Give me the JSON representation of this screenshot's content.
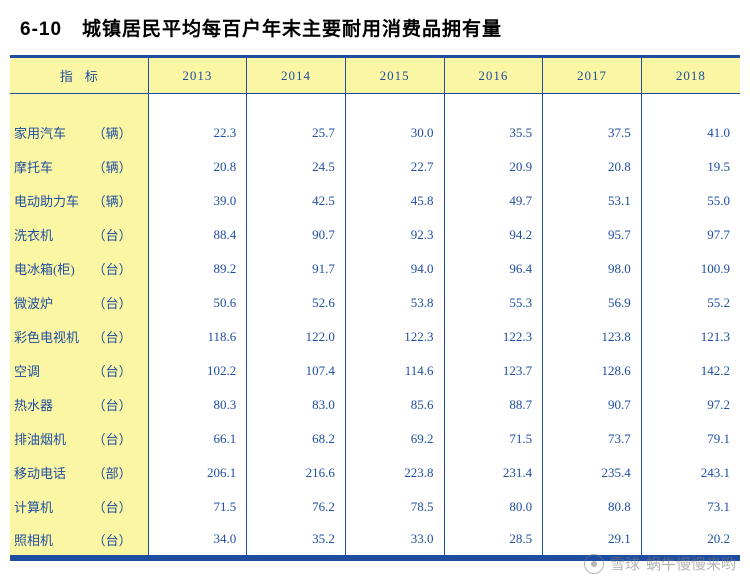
{
  "title": "6-10　城镇居民平均每百户年末主要耐用消费品拥有量",
  "header": {
    "indicator_label": "指标",
    "years": [
      "2013",
      "2014",
      "2015",
      "2016",
      "2017",
      "2018"
    ]
  },
  "colors": {
    "header_bg": "#fbf6a4",
    "label_bg": "#fbf6a4",
    "border": "#1f4ea1",
    "text": "#1f4ea1",
    "title_text": "#000000",
    "page_bg": "#ffffff"
  },
  "rows": [
    {
      "name": "家用汽车",
      "unit": "（辆）",
      "values": [
        "22.3",
        "25.7",
        "30.0",
        "35.5",
        "37.5",
        "41.0"
      ]
    },
    {
      "name": "摩托车",
      "unit": "（辆）",
      "values": [
        "20.8",
        "24.5",
        "22.7",
        "20.9",
        "20.8",
        "19.5"
      ]
    },
    {
      "name": "电动助力车",
      "unit": "（辆）",
      "values": [
        "39.0",
        "42.5",
        "45.8",
        "49.7",
        "53.1",
        "55.0"
      ]
    },
    {
      "name": "洗衣机",
      "unit": "（台）",
      "values": [
        "88.4",
        "90.7",
        "92.3",
        "94.2",
        "95.7",
        "97.7"
      ]
    },
    {
      "name": "电冰箱(柜)",
      "unit": "（台）",
      "values": [
        "89.2",
        "91.7",
        "94.0",
        "96.4",
        "98.0",
        "100.9"
      ]
    },
    {
      "name": "微波炉",
      "unit": "（台）",
      "values": [
        "50.6",
        "52.6",
        "53.8",
        "55.3",
        "56.9",
        "55.2"
      ]
    },
    {
      "name": "彩色电视机",
      "unit": "（台）",
      "values": [
        "118.6",
        "122.0",
        "122.3",
        "122.3",
        "123.8",
        "121.3"
      ]
    },
    {
      "name": "空调",
      "unit": "（台）",
      "values": [
        "102.2",
        "107.4",
        "114.6",
        "123.7",
        "128.6",
        "142.2"
      ]
    },
    {
      "name": "热水器",
      "unit": "（台）",
      "values": [
        "80.3",
        "83.0",
        "85.6",
        "88.7",
        "90.7",
        "97.2"
      ]
    },
    {
      "name": "排油烟机",
      "unit": "（台）",
      "values": [
        "66.1",
        "68.2",
        "69.2",
        "71.5",
        "73.7",
        "79.1"
      ]
    },
    {
      "name": "移动电话",
      "unit": "（部）",
      "values": [
        "206.1",
        "216.6",
        "223.8",
        "231.4",
        "235.4",
        "243.1"
      ]
    },
    {
      "name": "计算机",
      "unit": "（台）",
      "values": [
        "71.5",
        "76.2",
        "78.5",
        "80.0",
        "80.8",
        "73.1"
      ]
    },
    {
      "name": "照相机",
      "unit": "（台）",
      "values": [
        "34.0",
        "35.2",
        "33.0",
        "28.5",
        "29.1",
        "20.2"
      ]
    }
  ],
  "watermark": {
    "site": "雪球",
    "author": "蜗牛慢慢来哟"
  }
}
